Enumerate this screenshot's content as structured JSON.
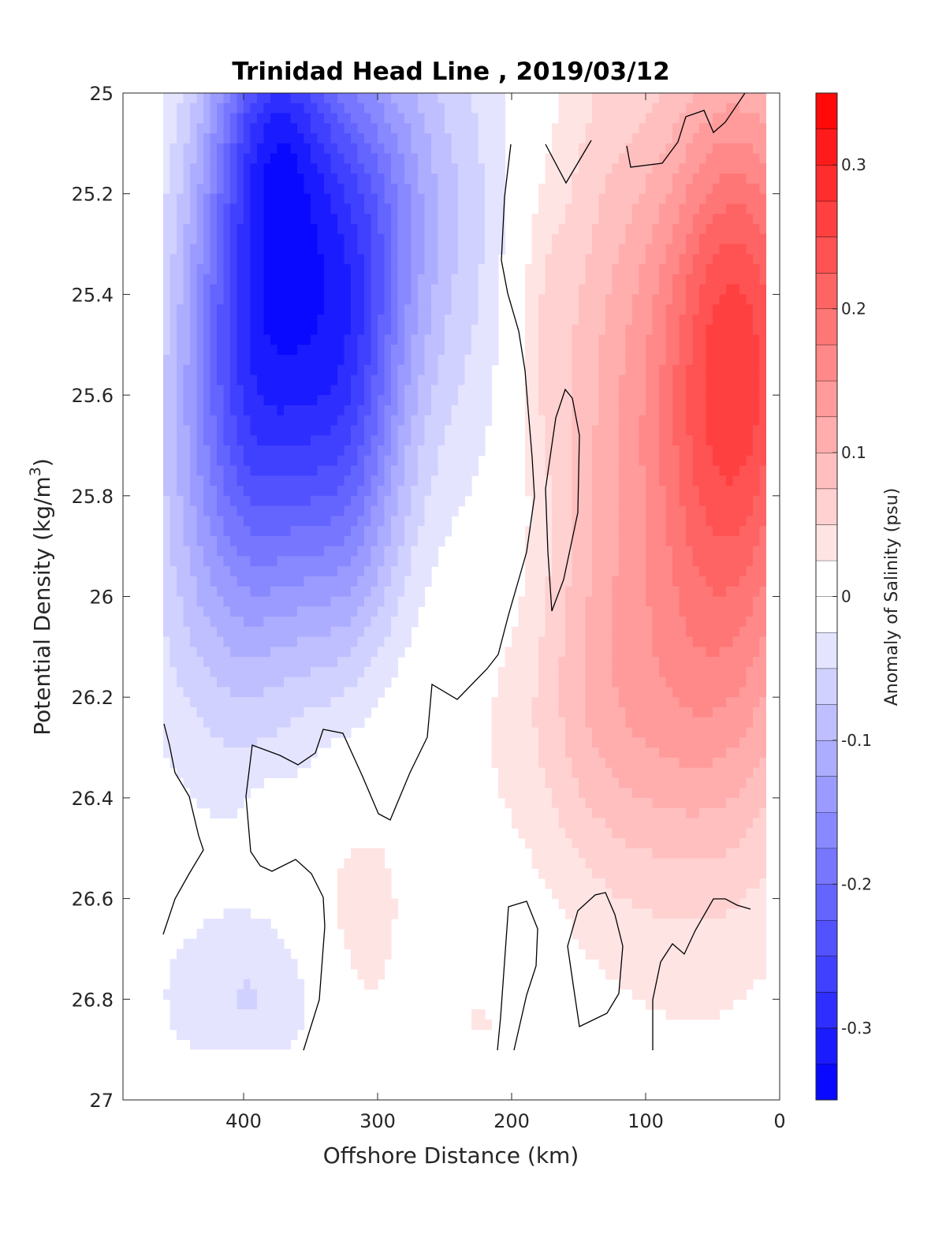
{
  "chart_data": {
    "type": "heatmap",
    "title": "Trinidad Head Line , 2019/03/12",
    "xlabel": "Offshore Distance (km)",
    "ylabel_main": "Potential Density (kg/m",
    "ylabel_sup": "3",
    "ylabel_close": ")",
    "colorbar_label": "Anomaly of Salinity (psu)",
    "x_axis": {
      "range": [
        490,
        0
      ],
      "reversed": true,
      "ticks": [
        400,
        300,
        200,
        100,
        0
      ],
      "tick_labels": [
        "400",
        "300",
        "200",
        "100",
        "0"
      ]
    },
    "y_axis": {
      "range": [
        25,
        27
      ],
      "reversed": true,
      "ticks": [
        25,
        25.2,
        25.4,
        25.6,
        25.8,
        26,
        26.2,
        26.4,
        26.6,
        26.8,
        27
      ],
      "tick_labels": [
        "25",
        "25.2",
        "25.4",
        "25.6",
        "25.8",
        "26",
        "26.2",
        "26.4",
        "26.6",
        "26.8",
        "27"
      ]
    },
    "colorbar": {
      "range": [
        -0.35,
        0.35
      ],
      "level_step": 0.025,
      "ticks": [
        0.3,
        0.2,
        0.1,
        0,
        -0.1,
        -0.2,
        -0.3
      ],
      "tick_labels": [
        "0.3",
        "0.2",
        "0.1",
        "0",
        "-0.1",
        "-0.2",
        "-0.3"
      ],
      "negative_color": "#0000ff",
      "positive_color": "#ff0000",
      "zero_color": "#ffffff"
    },
    "data_extent": {
      "x_range": [
        460,
        10
      ],
      "y_range": [
        25,
        26.9
      ]
    },
    "features": [
      {
        "x": 385,
        "y": 25.45,
        "sx": 40,
        "sy": 0.38,
        "amp": -0.27
      },
      {
        "x": 375,
        "y": 25.05,
        "sx": 30,
        "sy": 0.18,
        "amp": -0.12
      },
      {
        "x": 320,
        "y": 25.6,
        "sx": 30,
        "sy": 0.35,
        "amp": -0.16
      },
      {
        "x": 305,
        "y": 25.2,
        "sx": 40,
        "sy": 0.25,
        "amp": -0.09
      },
      {
        "x": 250,
        "y": 25.3,
        "sx": 60,
        "sy": 0.45,
        "amp": -0.05
      },
      {
        "x": 420,
        "y": 25.9,
        "sx": 45,
        "sy": 0.35,
        "amp": -0.06
      },
      {
        "x": 390,
        "y": 26.8,
        "sx": 55,
        "sy": 0.12,
        "amp": -0.05
      },
      {
        "x": 30,
        "y": 25.5,
        "sx": 45,
        "sy": 0.4,
        "amp": 0.2
      },
      {
        "x": 60,
        "y": 25.9,
        "sx": 60,
        "sy": 0.55,
        "amp": 0.1
      },
      {
        "x": 135,
        "y": 25.5,
        "sx": 30,
        "sy": 0.6,
        "amp": 0.055
      },
      {
        "x": 180,
        "y": 25.45,
        "sx": 18,
        "sy": 0.25,
        "amp": 0.045
      },
      {
        "x": 120,
        "y": 26.25,
        "sx": 90,
        "sy": 0.22,
        "amp": 0.045
      },
      {
        "x": 315,
        "y": 26.7,
        "sx": 30,
        "sy": 0.25,
        "amp": 0.045
      },
      {
        "x": 225,
        "y": 26.85,
        "sx": 25,
        "sy": 0.08,
        "amp": 0.025
      },
      {
        "x": 380,
        "y": 26.42,
        "sx": 10,
        "sy": 0.03,
        "amp": 0.03
      }
    ]
  }
}
